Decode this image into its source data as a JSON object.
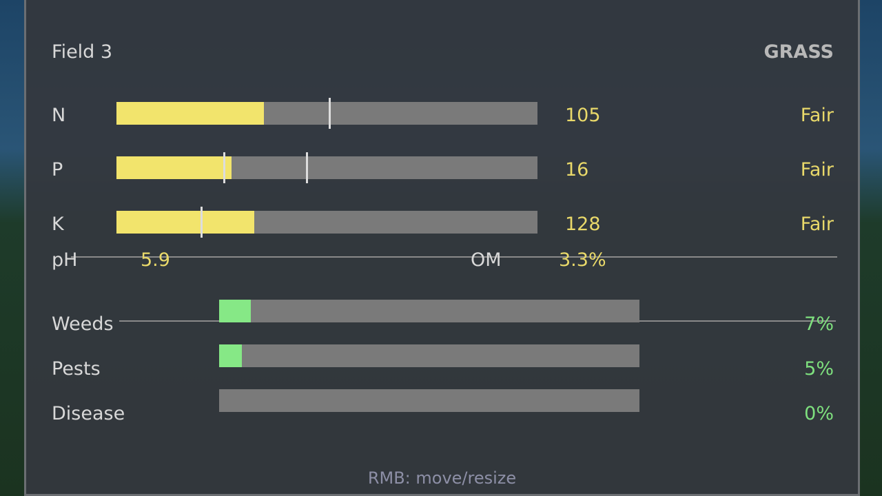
{
  "title": "Field 3",
  "crop": "GRASS",
  "nutrients": [
    {
      "label": "N",
      "value": "105",
      "status": "Fair",
      "fill_pct": 35,
      "markers_pct": [
        50.4
      ]
    },
    {
      "label": "P",
      "value": "16",
      "status": "Fair",
      "fill_pct": 27.3,
      "markers_pct": [
        25.4,
        45
      ]
    },
    {
      "label": "K",
      "value": "128",
      "status": "Fair",
      "fill_pct": 32.7,
      "markers_pct": [
        20
      ]
    }
  ],
  "ph": {
    "label": "pH",
    "value": "5.9"
  },
  "om": {
    "label": "OM",
    "value": "3.3%"
  },
  "threats": [
    {
      "label": "Weeds",
      "value": "7%",
      "fill_pct": 7.5
    },
    {
      "label": "Pests",
      "value": "5%",
      "fill_pct": 5.4
    },
    {
      "label": "Disease",
      "value": "0%",
      "fill_pct": 0
    }
  ],
  "hint": "RMB: move/resize",
  "colors": {
    "nutrient_fill": "#f2e46c",
    "threat_fill": "#86e886",
    "track": "#7a7a7a"
  }
}
